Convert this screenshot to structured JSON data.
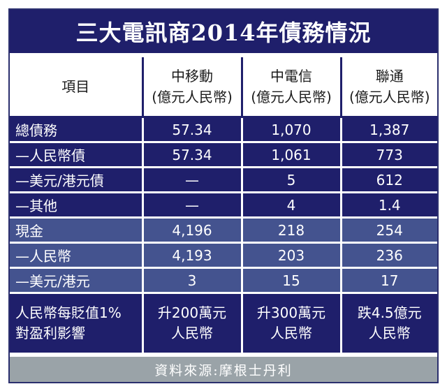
{
  "title": "三大電訊商2014年債務情況",
  "header": {
    "item": "項目",
    "cols": [
      {
        "name": "中移動",
        "unit": "(億元人民幣)"
      },
      {
        "name": "中電信",
        "unit": "(億元人民幣)"
      },
      {
        "name": "聯通",
        "unit": "(億元人民幣)"
      }
    ]
  },
  "debt_rows": [
    {
      "label": "總債務",
      "v": [
        "57.34",
        "1,070",
        "1,387"
      ]
    },
    {
      "label": "—人民幣債",
      "v": [
        "57.34",
        "1,061",
        "773"
      ]
    },
    {
      "label": "—美元/港元債",
      "v": [
        "—",
        "5",
        "612"
      ]
    },
    {
      "label": "—其他",
      "v": [
        "—",
        "4",
        "1.4"
      ]
    }
  ],
  "cash_rows": [
    {
      "label": "現金",
      "v": [
        "4,196",
        "218",
        "254"
      ]
    },
    {
      "label": "—人民幣",
      "v": [
        "4,193",
        "203",
        "236"
      ]
    },
    {
      "label": "—美元/港元",
      "v": [
        "3",
        "15",
        "17"
      ]
    }
  ],
  "impact": {
    "label": [
      "人民幣每貶值1%",
      "對盈利影響"
    ],
    "v": [
      [
        "升200萬元",
        "人民幣"
      ],
      [
        "升300萬元",
        "人民幣"
      ],
      [
        "跌4.5億元",
        "人民幣"
      ]
    ]
  },
  "source": "資料來源:摩根士丹利"
}
